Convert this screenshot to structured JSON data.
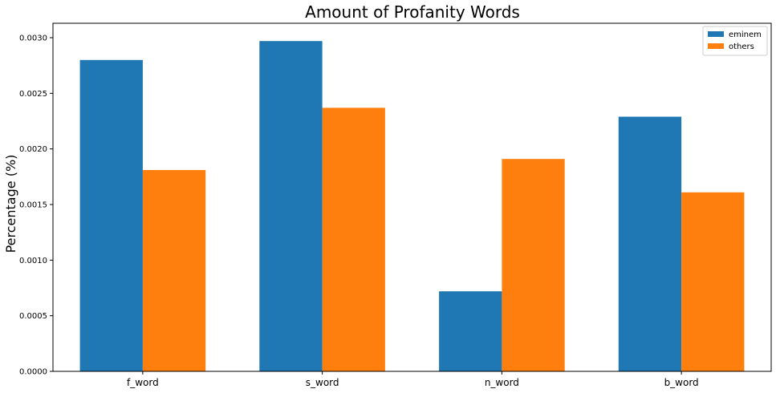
{
  "chart_data": {
    "type": "bar",
    "title": "Amount of Profanity Words",
    "xlabel": "",
    "ylabel": "Percentage (%)",
    "categories": [
      "f_word",
      "s_word",
      "n_word",
      "b_word"
    ],
    "series": [
      {
        "name": "eminem",
        "color": "#1f77b4",
        "values": [
          0.0028,
          0.00297,
          0.00072,
          0.00229
        ]
      },
      {
        "name": "others",
        "color": "#ff7f0e",
        "values": [
          0.00181,
          0.00237,
          0.00191,
          0.00161
        ]
      }
    ],
    "ylim": [
      0,
      0.00313
    ],
    "yticks": [
      "0.0000",
      "0.0005",
      "0.0010",
      "0.0015",
      "0.0020",
      "0.0025",
      "0.0030"
    ],
    "ytick_values": [
      0,
      0.0005,
      0.001,
      0.0015,
      0.002,
      0.0025,
      0.003
    ],
    "grid": false,
    "legend_position": "top-right"
  }
}
